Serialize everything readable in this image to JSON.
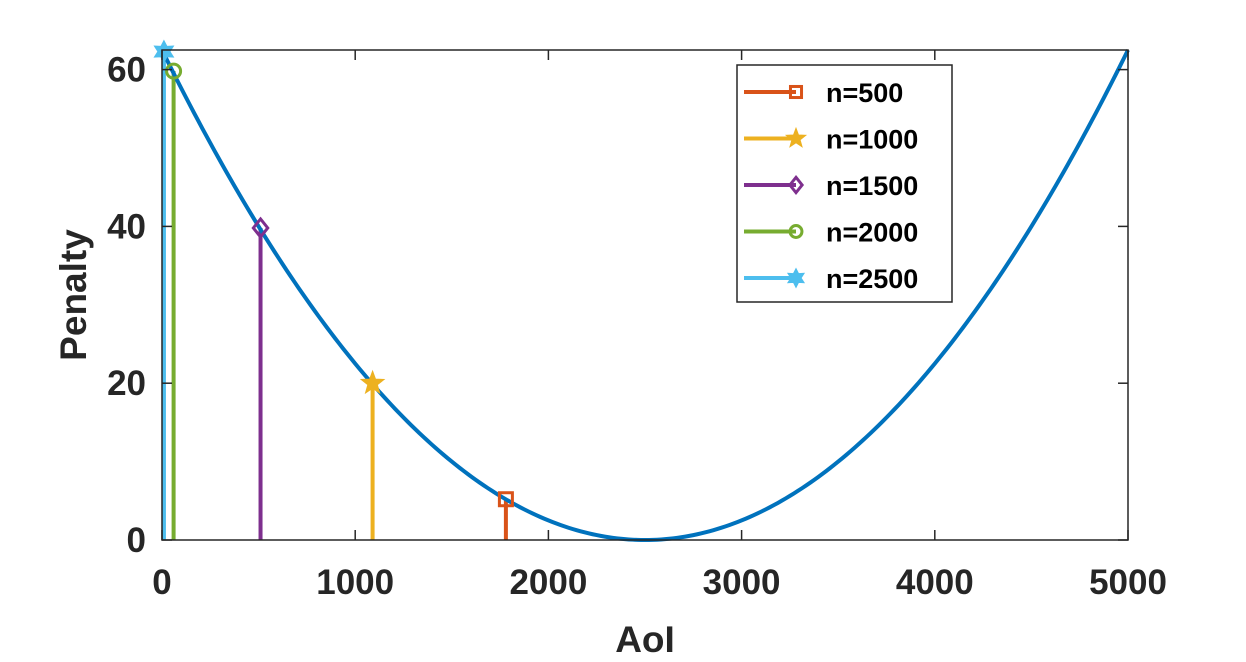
{
  "chart_data": {
    "type": "line",
    "xlabel": "AoI",
    "ylabel": "Penalty",
    "xlim": [
      0,
      5000
    ],
    "ylim": [
      0,
      62.5
    ],
    "xticks": [
      0,
      1000,
      2000,
      3000,
      4000,
      5000
    ],
    "yticks": [
      0,
      20,
      40,
      60
    ],
    "xtick_labels": [
      "0",
      "1000",
      "2000",
      "3000",
      "4000",
      "5000"
    ],
    "ytick_labels": [
      "0",
      "20",
      "40",
      "60"
    ],
    "grid": false,
    "legend_position": "top-right",
    "curve": {
      "description": "parabola",
      "vertex": [
        2500,
        0
      ],
      "y_at_x0": 62.5,
      "x_range": [
        0,
        5000
      ],
      "color": "#0072BD"
    },
    "series": [
      {
        "name": "n=500",
        "x": 1780,
        "y": 5.2,
        "marker": "square",
        "color": "#D95319"
      },
      {
        "name": "n=1000",
        "x": 1090,
        "y": 20,
        "marker": "star",
        "color": "#EDB120"
      },
      {
        "name": "n=1500",
        "x": 510,
        "y": 39.8,
        "marker": "diamond",
        "color": "#7E2F8E"
      },
      {
        "name": "n=2000",
        "x": 60,
        "y": 59.8,
        "marker": "circle",
        "color": "#77AC30"
      },
      {
        "name": "n=2500",
        "x": 10,
        "y": 62.3,
        "marker": "hexagram",
        "color": "#4DBEEE"
      }
    ]
  }
}
